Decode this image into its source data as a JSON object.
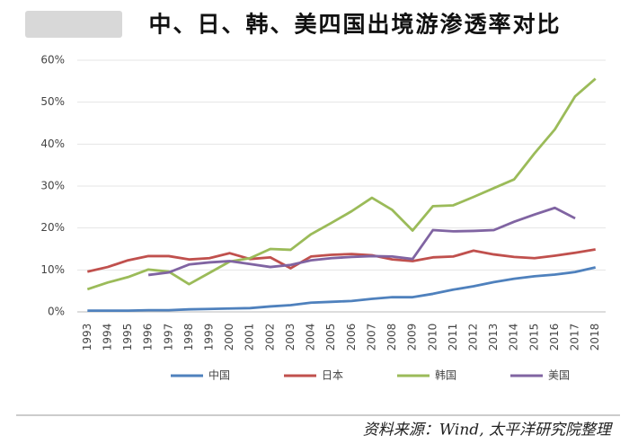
{
  "chart_data": {
    "type": "line",
    "title": "中、日、韩、美四国出境游渗透率对比",
    "source": "资料来源：Wind, 太平洋研究院整理",
    "categories": [
      "1993",
      "1994",
      "1995",
      "1996",
      "1997",
      "1998",
      "1999",
      "2000",
      "2001",
      "2002",
      "2003",
      "2004",
      "2005",
      "2006",
      "2007",
      "2008",
      "2009",
      "2010",
      "2011",
      "2012",
      "2013",
      "2014",
      "2015",
      "2016",
      "2017",
      "2018"
    ],
    "series": [
      {
        "name": "中国",
        "color": "#4f81bd",
        "values": [
          0.3,
          0.3,
          0.3,
          0.4,
          0.4,
          0.6,
          0.7,
          0.8,
          0.9,
          1.3,
          1.6,
          2.2,
          2.4,
          2.6,
          3.1,
          3.5,
          3.5,
          4.3,
          5.3,
          6.1,
          7.1,
          7.9,
          8.5,
          8.9,
          9.5,
          10.6
        ]
      },
      {
        "name": "日本",
        "color": "#c0504d",
        "values": [
          9.6,
          10.7,
          12.3,
          13.3,
          13.3,
          12.5,
          12.8,
          14.0,
          12.6,
          13.0,
          10.4,
          13.2,
          13.6,
          13.8,
          13.5,
          12.5,
          12.1,
          13.0,
          13.2,
          14.6,
          13.7,
          13.1,
          12.8,
          13.4,
          14.1,
          14.9
        ]
      },
      {
        "name": "韩国",
        "color": "#9bbb59",
        "values": [
          5.4,
          7.0,
          8.3,
          10.1,
          9.6,
          6.6,
          9.3,
          12.0,
          12.8,
          15.0,
          14.8,
          18.5,
          21.2,
          24.0,
          27.2,
          24.3,
          19.4,
          25.2,
          25.4,
          27.4,
          29.5,
          31.6,
          37.8,
          43.5,
          51.4,
          55.6
        ]
      },
      {
        "name": "美国",
        "color": "#8064a2",
        "values": [
          null,
          null,
          null,
          8.8,
          9.4,
          11.3,
          11.8,
          12.1,
          11.4,
          10.7,
          11.2,
          12.3,
          12.8,
          13.1,
          13.3,
          13.2,
          12.6,
          19.5,
          19.2,
          19.3,
          19.5,
          21.5,
          23.2,
          24.8,
          22.3,
          null
        ]
      }
    ],
    "ylim": [
      0,
      60
    ],
    "yticks": [
      {
        "value": 0,
        "label": "0%"
      },
      {
        "value": 10,
        "label": "10%"
      },
      {
        "value": 20,
        "label": "20%"
      },
      {
        "value": 30,
        "label": "30%"
      },
      {
        "value": 40,
        "label": "40%"
      },
      {
        "value": 50,
        "label": "50%"
      },
      {
        "value": 60,
        "label": "60%"
      }
    ],
    "grid": true,
    "legend": "bottom"
  }
}
